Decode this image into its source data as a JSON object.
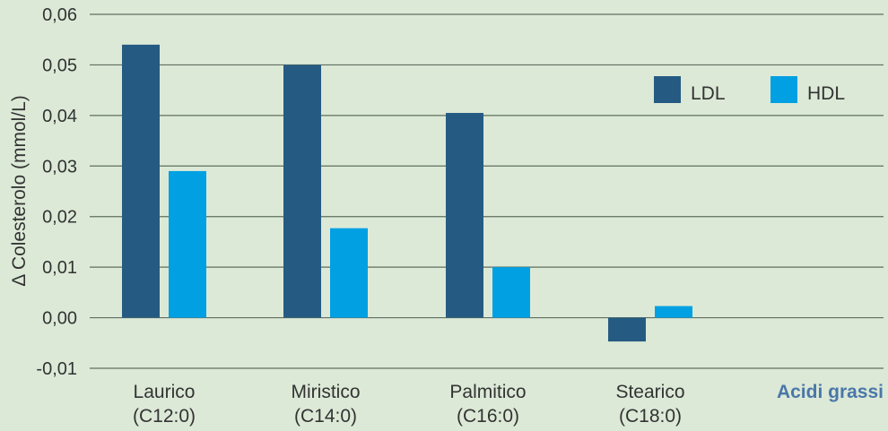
{
  "colors": {
    "background": "#dce9d7",
    "ldl": "#255b82",
    "hdl": "#00a0e3",
    "grid": "#5f6e5f",
    "text": "#333333",
    "accent_label": "#4a77a8"
  },
  "chart_data": {
    "type": "bar",
    "title": "",
    "ylabel": "Δ Colesterolo (mmol/L)",
    "xlabel": "Acidi grassi",
    "ylim": [
      -0.01,
      0.06
    ],
    "yticks": [
      -0.01,
      0.0,
      0.01,
      0.02,
      0.03,
      0.04,
      0.05,
      0.06
    ],
    "ytick_labels": [
      "-0,01",
      "0,00",
      "0,01",
      "0,02",
      "0,03",
      "0,04",
      "0,05",
      "0,06"
    ],
    "grid": true,
    "legend_position": "top-right",
    "categories": [
      {
        "name": "Laurico",
        "formula": "(C12:0)"
      },
      {
        "name": "Miristico",
        "formula": "(C14:0)"
      },
      {
        "name": "Palmitico",
        "formula": "(C16:0)"
      },
      {
        "name": "Stearico",
        "formula": "(C18:0)"
      }
    ],
    "series": [
      {
        "name": "LDL",
        "color": "#255b82",
        "values": [
          0.054,
          0.05,
          0.0405,
          -0.0047
        ]
      },
      {
        "name": "HDL",
        "color": "#00a0e3",
        "values": [
          0.029,
          0.0177,
          0.01,
          0.0023
        ]
      }
    ]
  }
}
